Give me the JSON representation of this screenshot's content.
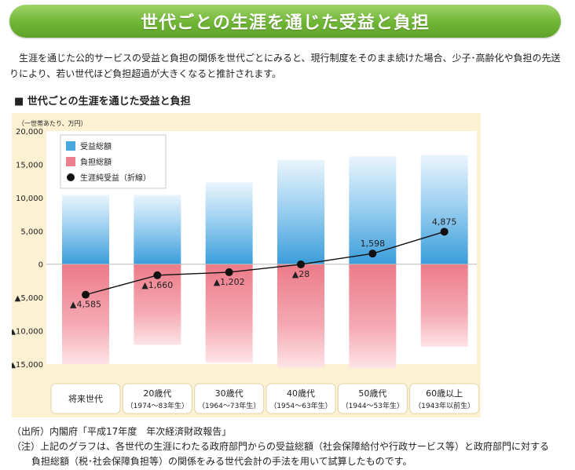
{
  "banner": {
    "title": "世代ごとの生涯を通じた受益と負担"
  },
  "intro": {
    "text": "生涯を通じた公的サービスの受益と負担の関係を世代ごとにみると、現行制度をそのまま続けた場合、少子･高齢化や負担の先送りにより、若い世代ほど負担超過が大きくなると推計されます。"
  },
  "section": {
    "title": "■ 世代ごとの生涯を通じた受益と負担"
  },
  "chart_data": {
    "type": "bar",
    "unit_label": "（一世帯あたり、万円）",
    "ylim": [
      -15000,
      20000
    ],
    "yticks": [
      20000,
      15000,
      10000,
      5000,
      0,
      -5000,
      -10000,
      -15000
    ],
    "ytick_labels": [
      "20,000",
      "15,000",
      "10,000",
      "5,000",
      "0",
      "▲5,000",
      "▲10,000",
      "▲15,000"
    ],
    "categories": [
      {
        "line1": "将来世代",
        "line2": ""
      },
      {
        "line1": "20歳代",
        "line2": "（1974～83年生）"
      },
      {
        "line1": "30歳代",
        "line2": "（1964～73年生）"
      },
      {
        "line1": "40歳代",
        "line2": "（1954～63年生）"
      },
      {
        "line1": "50歳代",
        "line2": "（1944～53年生）"
      },
      {
        "line1": "60歳以上",
        "line2": "（1943年以前生）"
      }
    ],
    "series": [
      {
        "name": "受益総額",
        "color": "#4aa8e0",
        "values": [
          10400,
          10400,
          12300,
          15700,
          16200,
          16400
        ]
      },
      {
        "name": "負担総額",
        "color": "#ee7f8c",
        "values": [
          -15000,
          -12100,
          -14800,
          -15500,
          -15600,
          -12400
        ]
      },
      {
        "name": "生涯純受益（折線）",
        "color": "#111111",
        "values": [
          -4585,
          -1660,
          -1202,
          -28,
          1598,
          4875
        ]
      }
    ],
    "data_labels": [
      "▲4,585",
      "▲1,660",
      "▲1,202",
      "▲28",
      "1,598",
      "4,875"
    ],
    "legend_position": "top-left",
    "grid": false
  },
  "notes": {
    "source": "（出所）内閣府「平成17年度　年次経済財政報告」",
    "note_line1": "（注）上記のグラフは、各世代の生涯にわたる政府部門からの受益総額（社会保障給付や行政サービス等）と政府部門に対する",
    "note_line2": "負担総額（税･社会保障負担等）の関係をみる世代会計の手法を用いて試算したものです。"
  }
}
